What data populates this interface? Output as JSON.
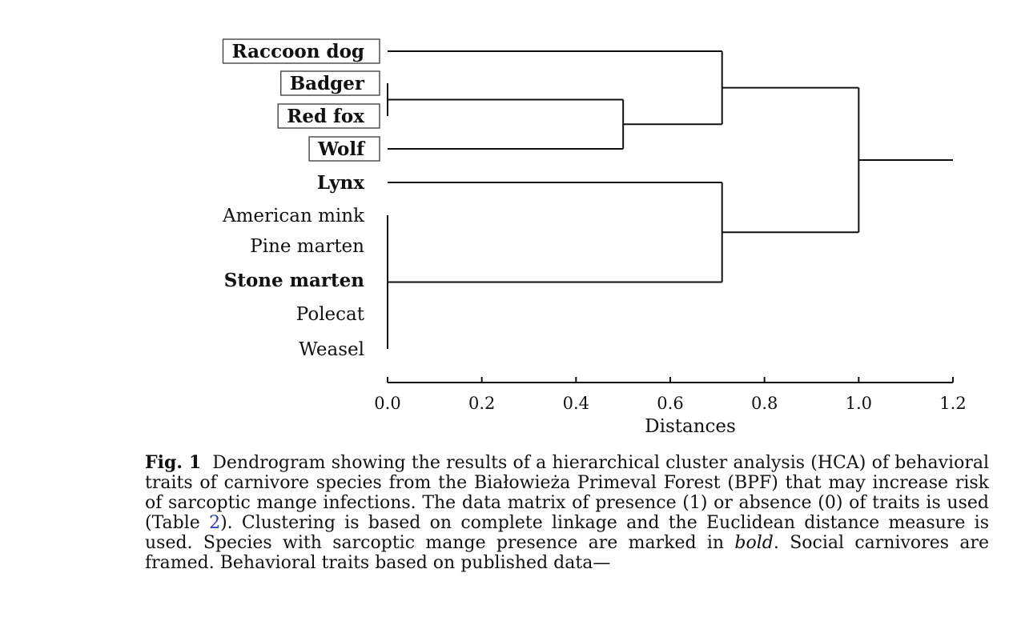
{
  "chart_data": {
    "type": "dendrogram",
    "leaves": [
      {
        "name": "Raccoon dog",
        "bold": true,
        "framed": true
      },
      {
        "name": "Badger",
        "bold": true,
        "framed": true
      },
      {
        "name": "Red fox",
        "bold": true,
        "framed": true
      },
      {
        "name": "Wolf",
        "bold": true,
        "framed": true
      },
      {
        "name": "Lynx",
        "bold": true,
        "framed": false
      },
      {
        "name": "American mink",
        "bold": false,
        "framed": false
      },
      {
        "name": "Pine marten",
        "bold": false,
        "framed": false
      },
      {
        "name": "Stone marten",
        "bold": true,
        "framed": false
      },
      {
        "name": "Polecat",
        "bold": false,
        "framed": false
      },
      {
        "name": "Weasel",
        "bold": false,
        "framed": false
      }
    ],
    "merges": [
      {
        "id": "n1",
        "members": [
          "Badger",
          "Red fox"
        ],
        "height": 0.0
      },
      {
        "id": "n2",
        "members": [
          "American mink",
          "Pine marten",
          "Stone marten",
          "Polecat",
          "Weasel"
        ],
        "height": 0.0
      },
      {
        "id": "n3",
        "members": [
          "n1",
          "Wolf"
        ],
        "height": 0.5
      },
      {
        "id": "n4",
        "members": [
          "Raccoon dog",
          "n3"
        ],
        "height": 0.71
      },
      {
        "id": "n5",
        "members": [
          "Lynx",
          "n2"
        ],
        "height": 0.71
      },
      {
        "id": "n6",
        "members": [
          "n4",
          "n5"
        ],
        "height": 1.0
      }
    ],
    "root_extends_to": 1.2,
    "x_axis": {
      "label": "Distances",
      "range": [
        0.0,
        1.2
      ],
      "ticks": [
        "0.0",
        "0.2",
        "0.4",
        "0.6",
        "0.8",
        "1.0",
        "1.2"
      ]
    }
  },
  "caption": {
    "label": "Fig. 1",
    "text_1": "Dendrogram showing the results of a hierarchical cluster analysis (HCA) of behavioral traits of carnivore species from the Białowieża Primeval Forest (BPF) that may increase risk of sarcoptic mange infections. The data matrix of presence (1) or absence (0) of traits is used (Table ",
    "table_ref": "2",
    "text_2": "). Clustering is based on complete linkage and the Euclidean distance measure is used. Species with sarcoptic mange presence are marked in ",
    "bold_word": "bold",
    "text_3": ". Social carnivores are framed. Behavioral traits based on published data—"
  }
}
